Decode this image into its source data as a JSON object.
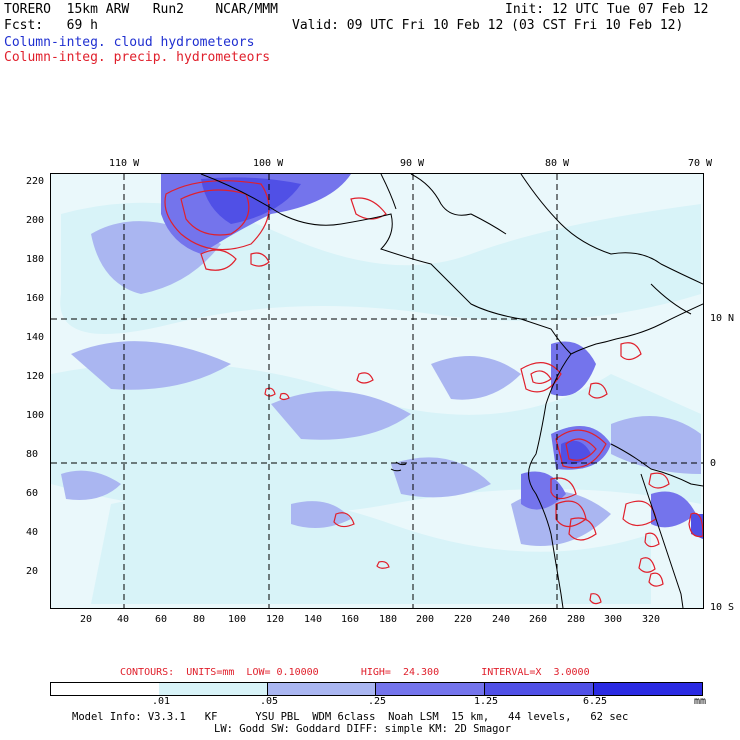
{
  "header": {
    "model": "TORERO  15km ARW   Run2    NCAR/MMM",
    "init": "Init: 12 UTC Tue 07 Feb 12",
    "fcst": "Fcst:   69 h",
    "valid": "Valid: 09 UTC Fri 10 Feb 12 (03 CST Fri 10 Feb 12)",
    "cloud_label": "Column-integ. cloud hydrometeors",
    "precip_label": "Column-integ. precip. hydrometeors"
  },
  "axes": {
    "lon_top": [
      "110 W",
      "100 W",
      "90 W",
      "80 W",
      "70 W"
    ],
    "lat_right": [
      "10 N",
      "0",
      "10 S"
    ],
    "y_ticks": [
      "220",
      "200",
      "180",
      "160",
      "140",
      "120",
      "100",
      "80",
      "60",
      "40",
      "20"
    ],
    "x_ticks": [
      "20",
      "40",
      "60",
      "80",
      "100",
      "120",
      "140",
      "160",
      "180",
      "200",
      "220",
      "240",
      "260",
      "280",
      "300",
      "320"
    ]
  },
  "contour_info": {
    "text": "CONTOURS:  UNITS=mm  LOW= 0.10000       HIGH=  24.300       INTERVAL=X  3.0000"
  },
  "colorbar": {
    "labels": [
      ".01",
      ".05",
      ".25",
      "1.25",
      "6.25"
    ],
    "unit": "mm",
    "colors": [
      "#ffffff",
      "#d8f3f8",
      "#aab6f1",
      "#7474ec",
      "#5050e6",
      "#2a2ae2"
    ]
  },
  "footer": {
    "line1": "Model Info: V3.3.1   KF      YSU PBL  WDM 6class  Noah LSM  15 km,   44 levels,   62 sec",
    "line2": "LW: Godd SW: Goddard DIFF: simple KM: 2D Smagor"
  },
  "colors": {
    "cloud": "#1f2fd0",
    "precip": "#e0202c",
    "fill_light": "#d8f3f8",
    "fill_mid": "#aab6f1",
    "fill_dark": "#7474ec",
    "fill_darker": "#5050e6"
  }
}
